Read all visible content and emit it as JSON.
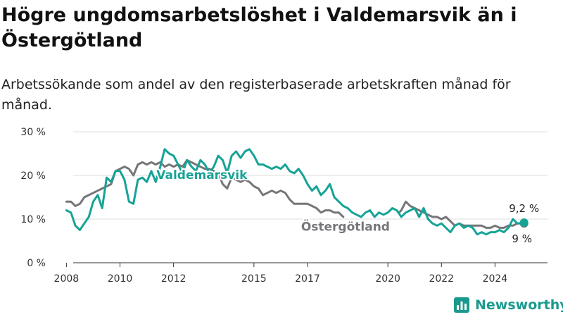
{
  "header": {
    "title": "Högre ungdomsarbetslöshet i Valdemarsvik än i Östergötland",
    "subtitle": "Arbetssökande som andel av den registerbaserade arbetskraften månad för månad."
  },
  "brand": {
    "name": "Newsworthy",
    "icon": "bar-chart-icon",
    "color": "#1a9a8e"
  },
  "colors": {
    "valdemarsvik": "#16a396",
    "ostergotland": "#76767a",
    "grid": "#dedede"
  },
  "chart_data": {
    "type": "line",
    "title": "Högre ungdomsarbetslöshet i Valdemarsvik än i Östergötland",
    "subtitle": "Arbetssökande som andel av den registerbaserade arbetskraften månad för månad.",
    "xlabel": "",
    "ylabel": "",
    "x_ticks": [
      "2008",
      "2010",
      "2012",
      "2015",
      "2017",
      "2020",
      "2022",
      "2024"
    ],
    "y_ticks": [
      "0 %",
      "10 %",
      "20 %",
      "30 %"
    ],
    "ylim": [
      0,
      30
    ],
    "xlim": [
      "2007-07",
      "2025-12"
    ],
    "grid": true,
    "legend": "inline labels",
    "series": [
      {
        "name": "Valdemarsvik",
        "color": "#16a396",
        "end_label": "9,2 %",
        "points": [
          [
            "2008-01",
            12
          ],
          [
            "2008-03",
            11.5
          ],
          [
            "2008-05",
            8.5
          ],
          [
            "2008-07",
            7.5
          ],
          [
            "2008-09",
            9
          ],
          [
            "2008-11",
            10.5
          ],
          [
            "2009-01",
            14
          ],
          [
            "2009-03",
            15.5
          ],
          [
            "2009-05",
            12.5
          ],
          [
            "2009-07",
            19.5
          ],
          [
            "2009-09",
            18.5
          ],
          [
            "2009-11",
            21
          ],
          [
            "2010-01",
            21
          ],
          [
            "2010-03",
            19
          ],
          [
            "2010-05",
            14
          ],
          [
            "2010-07",
            13.5
          ],
          [
            "2010-09",
            19
          ],
          [
            "2010-11",
            19.5
          ],
          [
            "2011-01",
            18.5
          ],
          [
            "2011-03",
            21
          ],
          [
            "2011-05",
            18.5
          ],
          [
            "2011-07",
            22
          ],
          [
            "2011-09",
            26
          ],
          [
            "2011-11",
            25
          ],
          [
            "2012-01",
            24.5
          ],
          [
            "2012-03",
            22.5
          ],
          [
            "2012-05",
            20.5
          ],
          [
            "2012-07",
            23.5
          ],
          [
            "2012-09",
            22
          ],
          [
            "2012-11",
            21
          ],
          [
            "2013-01",
            23.5
          ],
          [
            "2013-03",
            22.5
          ],
          [
            "2013-05",
            20.5
          ],
          [
            "2013-07",
            22
          ],
          [
            "2013-09",
            24.5
          ],
          [
            "2013-11",
            23.5
          ],
          [
            "2014-01",
            20.5
          ],
          [
            "2014-03",
            24.5
          ],
          [
            "2014-05",
            25.5
          ],
          [
            "2014-07",
            24
          ],
          [
            "2014-09",
            25.5
          ],
          [
            "2014-11",
            26
          ],
          [
            "2015-01",
            24.5
          ],
          [
            "2015-03",
            22.5
          ],
          [
            "2015-05",
            22.5
          ],
          [
            "2015-07",
            22
          ],
          [
            "2015-09",
            21.5
          ],
          [
            "2015-11",
            22
          ],
          [
            "2016-01",
            21.5
          ],
          [
            "2016-03",
            22.5
          ],
          [
            "2016-05",
            21
          ],
          [
            "2016-07",
            20.5
          ],
          [
            "2016-09",
            21.5
          ],
          [
            "2016-11",
            20
          ],
          [
            "2017-01",
            18
          ],
          [
            "2017-03",
            16.5
          ],
          [
            "2017-05",
            17.5
          ],
          [
            "2017-07",
            15.5
          ],
          [
            "2017-09",
            16.5
          ],
          [
            "2017-11",
            18
          ],
          [
            "2018-01",
            15
          ],
          [
            "2018-03",
            14
          ],
          [
            "2018-05",
            13
          ],
          [
            "2018-07",
            12.5
          ],
          [
            "2018-09",
            11.5
          ],
          [
            "2018-11",
            11
          ],
          [
            "2019-01",
            10.5
          ],
          [
            "2019-03",
            11.5
          ],
          [
            "2019-05",
            12
          ],
          [
            "2019-07",
            10.5
          ],
          [
            "2019-09",
            11.5
          ],
          [
            "2019-11",
            11
          ],
          [
            "2020-01",
            11.5
          ],
          [
            "2020-03",
            12.5
          ],
          [
            "2020-05",
            12
          ],
          [
            "2020-07",
            10.5
          ],
          [
            "2020-09",
            11.5
          ],
          [
            "2020-11",
            12
          ],
          [
            "2021-01",
            12.5
          ],
          [
            "2021-03",
            10.5
          ],
          [
            "2021-05",
            12.5
          ],
          [
            "2021-07",
            10
          ],
          [
            "2021-09",
            9
          ],
          [
            "2021-11",
            8.5
          ],
          [
            "2022-01",
            9
          ],
          [
            "2022-03",
            8
          ],
          [
            "2022-05",
            7
          ],
          [
            "2022-07",
            8.5
          ],
          [
            "2022-09",
            9
          ],
          [
            "2022-11",
            8
          ],
          [
            "2023-01",
            8.5
          ],
          [
            "2023-03",
            8
          ],
          [
            "2023-05",
            6.5
          ],
          [
            "2023-07",
            7
          ],
          [
            "2023-09",
            6.5
          ],
          [
            "2023-11",
            7
          ],
          [
            "2024-01",
            7
          ],
          [
            "2024-03",
            7.5
          ],
          [
            "2024-05",
            7
          ],
          [
            "2024-07",
            8
          ],
          [
            "2024-09",
            10
          ],
          [
            "2024-11",
            9
          ],
          [
            "2025-02",
            9.2
          ]
        ]
      },
      {
        "name": "Östergötland",
        "color": "#76767a",
        "end_label": "9 %",
        "points": [
          [
            "2008-01",
            14
          ],
          [
            "2008-03",
            14
          ],
          [
            "2008-05",
            13
          ],
          [
            "2008-07",
            13.5
          ],
          [
            "2008-09",
            15
          ],
          [
            "2008-11",
            15.5
          ],
          [
            "2009-01",
            16
          ],
          [
            "2009-03",
            16.5
          ],
          [
            "2009-05",
            17
          ],
          [
            "2009-07",
            17.5
          ],
          [
            "2009-09",
            18
          ],
          [
            "2009-11",
            21
          ],
          [
            "2010-01",
            21.5
          ],
          [
            "2010-03",
            22
          ],
          [
            "2010-05",
            21.5
          ],
          [
            "2010-07",
            20
          ],
          [
            "2010-09",
            22.5
          ],
          [
            "2010-11",
            23
          ],
          [
            "2011-01",
            22.5
          ],
          [
            "2011-03",
            23
          ],
          [
            "2011-05",
            22.5
          ],
          [
            "2011-07",
            23
          ],
          [
            "2011-09",
            22
          ],
          [
            "2011-11",
            22.5
          ],
          [
            "2012-01",
            22
          ],
          [
            "2012-03",
            22.5
          ],
          [
            "2012-05",
            22
          ],
          [
            "2012-07",
            23.5
          ],
          [
            "2012-09",
            23
          ],
          [
            "2012-11",
            22.5
          ],
          [
            "2013-01",
            22
          ],
          [
            "2013-03",
            21.5
          ],
          [
            "2013-05",
            21.5
          ],
          [
            "2013-07",
            21
          ],
          [
            "2013-09",
            20.5
          ],
          [
            "2013-11",
            18
          ],
          [
            "2014-01",
            17
          ],
          [
            "2014-03",
            19.5
          ],
          [
            "2014-05",
            19
          ],
          [
            "2014-07",
            18.5
          ],
          [
            "2014-09",
            19
          ],
          [
            "2014-11",
            18.5
          ],
          [
            "2015-01",
            17.5
          ],
          [
            "2015-03",
            17
          ],
          [
            "2015-05",
            15.5
          ],
          [
            "2015-07",
            16
          ],
          [
            "2015-09",
            16.5
          ],
          [
            "2015-11",
            16
          ],
          [
            "2016-01",
            16.5
          ],
          [
            "2016-03",
            16
          ],
          [
            "2016-05",
            14.5
          ],
          [
            "2016-07",
            13.5
          ],
          [
            "2016-09",
            13.5
          ],
          [
            "2016-11",
            13.5
          ],
          [
            "2017-01",
            13.5
          ],
          [
            "2017-03",
            13
          ],
          [
            "2017-05",
            12.5
          ],
          [
            "2017-07",
            11.5
          ],
          [
            "2017-09",
            12
          ],
          [
            "2017-11",
            12
          ],
          [
            "2018-01",
            11.5
          ],
          [
            "2018-03",
            11.5
          ],
          [
            "2018-05",
            10.5
          ]
        ]
      },
      {
        "name": "Östergötland",
        "color": "#76767a",
        "points": [
          [
            "2020-06",
            11.5
          ],
          [
            "2020-07",
            12
          ],
          [
            "2020-09",
            14
          ],
          [
            "2020-11",
            13
          ],
          [
            "2021-01",
            12.5
          ],
          [
            "2021-03",
            12
          ],
          [
            "2021-05",
            11.5
          ],
          [
            "2021-07",
            11
          ],
          [
            "2021-09",
            10.5
          ],
          [
            "2021-11",
            10.5
          ],
          [
            "2022-01",
            10
          ],
          [
            "2022-03",
            10.5
          ],
          [
            "2022-05",
            9.5
          ],
          [
            "2022-07",
            8.5
          ],
          [
            "2022-09",
            9
          ],
          [
            "2022-11",
            8.5
          ],
          [
            "2023-01",
            8.5
          ],
          [
            "2023-03",
            8.5
          ],
          [
            "2023-05",
            8.5
          ],
          [
            "2023-07",
            8.5
          ],
          [
            "2023-09",
            8
          ],
          [
            "2023-11",
            8
          ],
          [
            "2024-01",
            8.5
          ],
          [
            "2024-03",
            8
          ],
          [
            "2024-05",
            8
          ],
          [
            "2024-07",
            8.5
          ],
          [
            "2024-09",
            8.5
          ],
          [
            "2024-11",
            9
          ],
          [
            "2025-02",
            9
          ]
        ]
      }
    ]
  }
}
